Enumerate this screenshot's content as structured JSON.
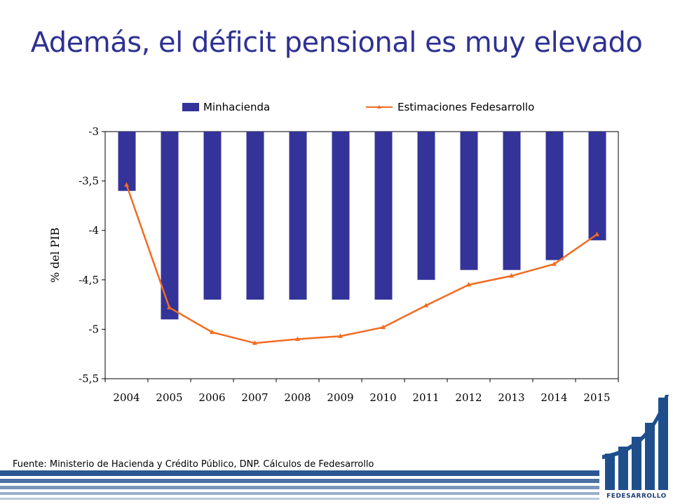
{
  "slide": {
    "title": "Además, el déficit pensional es muy elevado",
    "source": "Fuente: Ministerio de Hacienda y Crédito Público, DNP. Cálculos de Fedesarrollo",
    "logo_text": "FEDESARROLLO"
  },
  "colors": {
    "title": "#2e3192",
    "bar": "#333399",
    "line": "#f26b21",
    "footer": "#1f4e8c",
    "logo": "#1f4e8c"
  },
  "chart_data": {
    "type": "bar",
    "categories": [
      "2004",
      "2005",
      "2006",
      "2007",
      "2008",
      "2009",
      "2010",
      "2011",
      "2012",
      "2013",
      "2014",
      "2015"
    ],
    "series": [
      {
        "name": "Minhacienda",
        "type": "bar",
        "values": [
          -3.6,
          -4.9,
          -4.7,
          -4.7,
          -4.7,
          -4.7,
          -4.7,
          -4.5,
          -4.4,
          -4.4,
          -4.3,
          -4.1
        ]
      },
      {
        "name": "Estimaciones Fedesarrollo",
        "type": "line",
        "values": [
          -3.54,
          -4.78,
          -5.03,
          -5.14,
          -5.1,
          -5.07,
          -4.98,
          -4.76,
          -4.55,
          -4.46,
          -4.34,
          -4.04
        ]
      }
    ],
    "ylabel": "% del PIB",
    "ylim": [
      -5.5,
      -3
    ],
    "yticks": [
      -3,
      -3.5,
      -4,
      -4.5,
      -5,
      -5.5
    ],
    "ytick_labels": [
      "-3",
      "-3,5",
      "-4",
      "-4,5",
      "-5",
      "-5,5"
    ],
    "grid": false,
    "legend_position": "top"
  }
}
